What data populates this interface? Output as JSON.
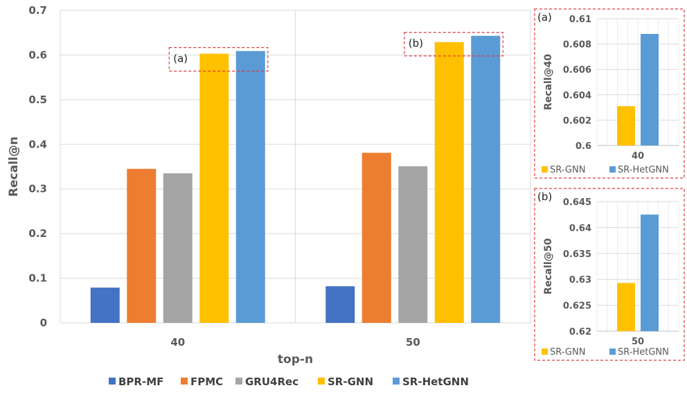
{
  "chart_data": [
    {
      "type": "bar",
      "title": "",
      "xlabel": "top-n",
      "ylabel": "Recall@n",
      "categories": [
        "40",
        "50"
      ],
      "ylim": [
        0,
        0.7
      ],
      "yticks": [
        "0",
        "0.1",
        "0.2",
        "0.3",
        "0.4",
        "0.5",
        "0.6",
        "0.7"
      ],
      "grid": "horizontal",
      "legend_position": "bottom",
      "series": [
        {
          "name": "BPR-MF",
          "color": "#4472C4",
          "values": [
            0.079,
            0.082
          ]
        },
        {
          "name": "FPMC",
          "color": "#ED7D31",
          "values": [
            0.345,
            0.381
          ]
        },
        {
          "name": "GRU4Rec",
          "color": "#A5A5A5",
          "values": [
            0.335,
            0.351
          ]
        },
        {
          "name": "SR-GNN",
          "color": "#FFC000",
          "values": [
            0.603,
            0.629
          ]
        },
        {
          "name": "SR-HetGNN",
          "color": "#5B9BD5",
          "values": [
            0.609,
            0.643
          ]
        }
      ],
      "annotations": [
        "(a)",
        "(b)"
      ]
    },
    {
      "type": "bar",
      "tag": "(a)",
      "ylabel": "Recall@40",
      "categories": [
        "40"
      ],
      "ylim": [
        0.6,
        0.61
      ],
      "yticks": [
        "0.6",
        "0.602",
        "0.604",
        "0.606",
        "0.608",
        "0.61"
      ],
      "series": [
        {
          "name": "SR-GNN",
          "color": "#FFC000",
          "values": [
            0.6031
          ]
        },
        {
          "name": "SR-HetGNN",
          "color": "#5B9BD5",
          "values": [
            0.6088
          ]
        }
      ]
    },
    {
      "type": "bar",
      "tag": "(b)",
      "ylabel": "Recall@50",
      "categories": [
        "50"
      ],
      "ylim": [
        0.62,
        0.645
      ],
      "yticks": [
        "0.62",
        "0.625",
        "0.63",
        "0.635",
        "0.64",
        "0.645"
      ],
      "series": [
        {
          "name": "SR-GNN",
          "color": "#FFC000",
          "values": [
            0.6293
          ]
        },
        {
          "name": "SR-HetGNN",
          "color": "#5B9BD5",
          "values": [
            0.6425
          ]
        }
      ]
    }
  ]
}
